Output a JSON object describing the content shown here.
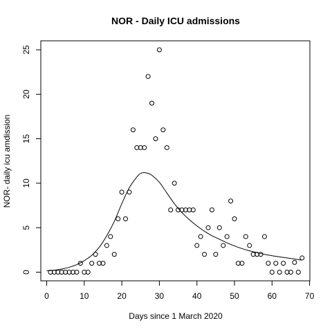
{
  "chart_data": {
    "type": "scatter",
    "title": "NOR - Daily ICU admissions",
    "xlabel": "Days since 1 March 2020",
    "ylabel": "NOR- daily icu amdission",
    "xlim": [
      0,
      70
    ],
    "ylim": [
      0,
      25
    ],
    "xticks": [
      0,
      10,
      20,
      30,
      40,
      50,
      60,
      70
    ],
    "yticks": [
      0,
      5,
      10,
      15,
      20,
      25
    ],
    "grid": false,
    "legend": "none",
    "series": [
      {
        "kind": "points",
        "x": [
          1,
          2,
          3,
          4,
          5,
          6,
          7,
          8,
          9,
          10,
          11,
          12,
          13,
          14,
          15,
          16,
          17,
          18,
          19,
          20,
          21,
          22,
          23,
          24,
          25,
          26,
          27,
          28,
          29,
          30,
          31,
          32,
          33,
          34,
          35,
          36,
          37,
          38,
          39,
          40,
          41,
          42,
          43,
          44,
          45,
          46,
          47,
          48,
          49,
          50,
          51,
          52,
          53,
          54,
          55,
          56,
          57,
          58,
          59,
          60,
          61,
          62,
          63,
          64,
          65,
          66,
          67,
          68
        ],
        "y": [
          0,
          0,
          0,
          0,
          0,
          0,
          0,
          0,
          1,
          0,
          0,
          1,
          2,
          1,
          1,
          3,
          4,
          2,
          6,
          9,
          6,
          9,
          16,
          14,
          14,
          14,
          22,
          19,
          15,
          25,
          16,
          14,
          7,
          10,
          7,
          7,
          7,
          7,
          7,
          3,
          4,
          2,
          5,
          7,
          2,
          5,
          3,
          4,
          8,
          6,
          1,
          1,
          4,
          3,
          2,
          2,
          2,
          4,
          1,
          0,
          1,
          0,
          1,
          0,
          0,
          1.1,
          0,
          1.6
        ]
      },
      {
        "kind": "fitted-curve",
        "x": [
          0,
          2,
          4,
          6,
          8,
          10,
          12,
          14,
          16,
          18,
          20,
          22,
          24,
          25,
          26,
          27,
          28,
          30,
          32,
          34,
          36,
          38,
          40,
          42,
          44,
          46,
          48,
          50,
          52,
          54,
          56,
          58,
          60,
          62,
          64,
          66,
          68
        ],
        "y": [
          0.15,
          0.22,
          0.35,
          0.55,
          0.85,
          1.3,
          1.9,
          2.8,
          4.1,
          5.7,
          7.7,
          9.5,
          10.7,
          11.1,
          11.2,
          11.1,
          10.9,
          10.1,
          8.9,
          7.7,
          6.7,
          5.9,
          5.2,
          4.6,
          4.1,
          3.7,
          3.3,
          2.95,
          2.65,
          2.4,
          2.2,
          2.0,
          1.85,
          1.72,
          1.6,
          1.48,
          1.35
        ]
      }
    ]
  }
}
